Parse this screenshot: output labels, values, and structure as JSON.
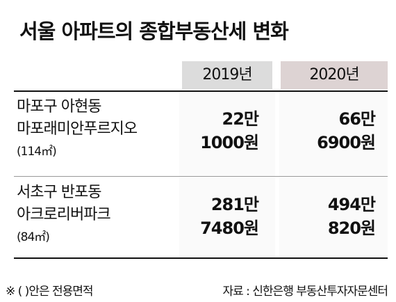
{
  "title": "서울 아파트의 종합부동산세 변화",
  "table": {
    "header": [
      "2019년",
      "2020년"
    ],
    "rows": [
      {
        "label": [
          "마포구 아현동",
          "마포래미안푸르지오",
          "(114㎡)"
        ],
        "cells": [
          [
            "22만",
            "1000원"
          ],
          [
            "66만",
            "6900원"
          ]
        ]
      },
      {
        "label": [
          "서초구 반포동",
          "아크로리버파크",
          "(84㎡)"
        ],
        "cells": [
          [
            "281만",
            "7480원"
          ],
          [
            "494만",
            "820원"
          ]
        ]
      }
    ]
  },
  "footer": {
    "note": "※ (   )안은 전용면적",
    "source": "자료 : 신한은행 부동산투자자문센터"
  }
}
